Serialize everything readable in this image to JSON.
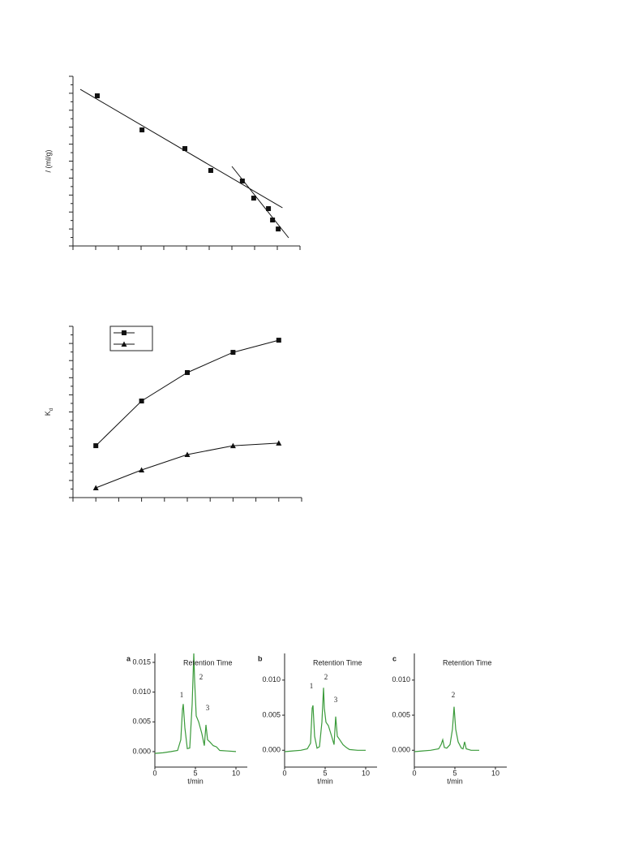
{
  "chart_data": [
    {
      "type": "scatter",
      "ylabel": "/   (ml/g)",
      "x": [
        1.07,
        3.04,
        4.93,
        6.07,
        7.46,
        7.96,
        8.61,
        8.79,
        9.04
      ],
      "values": [
        8.85,
        6.84,
        5.74,
        4.45,
        3.83,
        2.82,
        2.2,
        1.53,
        1.0
      ],
      "color": "#111",
      "fits": [
        {
          "x": [
            0.32,
            9.23
          ],
          "values": [
            9.23,
            2.25
          ]
        },
        {
          "x": [
            7.0,
            9.5
          ],
          "values": [
            4.69,
            0.48
          ]
        }
      ],
      "xlim": [
        0,
        10
      ],
      "ylim": [
        0,
        10
      ],
      "xticks": [
        0,
        1,
        2,
        3,
        4,
        5,
        6,
        7,
        8,
        9,
        10
      ],
      "yticks": [
        0,
        1,
        2,
        3,
        4,
        5,
        6,
        7,
        8,
        9,
        10
      ]
    },
    {
      "type": "line",
      "ylabel": "K",
      "ylabel_sub": "d",
      "x": [
        1,
        2,
        3,
        4,
        5
      ],
      "series": [
        {
          "marker": "square",
          "color": "#111",
          "values": [
            3.03,
            5.64,
            7.3,
            8.48,
            9.19
          ]
        },
        {
          "marker": "triangle",
          "color": "#111",
          "values": [
            0.57,
            1.61,
            2.51,
            3.03,
            3.18
          ]
        }
      ],
      "legend": "upper left",
      "xlim": [
        0.5,
        5.5
      ],
      "ylim": [
        0,
        10
      ],
      "xticks": [
        0.5,
        1,
        1.5,
        2,
        2.5,
        3,
        3.5,
        4,
        4.5,
        5,
        5.5
      ],
      "yticks": [
        0,
        1,
        2,
        3,
        4,
        5,
        6,
        7,
        8,
        9,
        10
      ]
    },
    {
      "type": "trace",
      "panel": "a",
      "title": "Retention Time",
      "xlabel": "t/min",
      "color": "#3a9a3a",
      "x": [
        0,
        1,
        2,
        2.8,
        3.2,
        3.4,
        3.5,
        3.7,
        4.0,
        4.3,
        4.6,
        4.8,
        4.9,
        5.1,
        5.4,
        5.8,
        6.1,
        6.3,
        6.5,
        6.8,
        7.2,
        7.6,
        8.0,
        9,
        10
      ],
      "values": [
        -0.0003,
        -0.0002,
        0,
        0.0002,
        0.002,
        0.007,
        0.008,
        0.004,
        0.0005,
        0.0006,
        0.008,
        0.0165,
        0.012,
        0.006,
        0.005,
        0.003,
        0.001,
        0.0045,
        0.002,
        0.0016,
        0.001,
        0.0008,
        0.0002,
        0.0001,
        0
      ],
      "peaks": [
        "1",
        "2",
        "3"
      ],
      "xlim": [
        0,
        11.4
      ],
      "ylim": [
        -0.0026,
        0.0165
      ],
      "xticks": [
        0,
        5,
        10
      ],
      "yticks": [
        {
          "value": 0,
          "label": "0.000"
        },
        {
          "value": 0.005,
          "label": "0.005"
        },
        {
          "value": 0.01,
          "label": "0.010"
        },
        {
          "value": 0.015,
          "label": "0.015"
        }
      ]
    },
    {
      "type": "trace",
      "panel": "b",
      "title": "Retention Time",
      "xlabel": "t/min",
      "color": "#3a9a3a",
      "x": [
        0,
        1,
        2,
        2.8,
        3.2,
        3.4,
        3.5,
        3.7,
        4.0,
        4.3,
        4.6,
        4.8,
        4.9,
        5.1,
        5.4,
        5.8,
        6.1,
        6.3,
        6.5,
        6.8,
        7.2,
        7.6,
        8.0,
        9,
        10
      ],
      "values": [
        -0.0002,
        -0.0001,
        0,
        0.0002,
        0.001,
        0.006,
        0.0064,
        0.002,
        0.0003,
        0.0005,
        0.004,
        0.0089,
        0.006,
        0.004,
        0.0035,
        0.002,
        0.0008,
        0.0048,
        0.002,
        0.0015,
        0.0008,
        0.0004,
        0.0001,
        0,
        0
      ],
      "peaks": [
        "1",
        "2",
        "3"
      ],
      "xlim": [
        0,
        11.4
      ],
      "ylim": [
        -0.0024,
        0.0138
      ],
      "xticks": [
        0,
        5,
        10
      ],
      "yticks": [
        {
          "value": 0,
          "label": "0.000"
        },
        {
          "value": 0.005,
          "label": "0.005"
        },
        {
          "value": 0.01,
          "label": "0.010"
        }
      ]
    },
    {
      "type": "trace",
      "panel": "c",
      "title": "Retention Time",
      "xlabel": "t/min",
      "color": "#3a9a3a",
      "x": [
        0,
        1,
        2,
        3,
        3.3,
        3.5,
        3.7,
        4.0,
        4.4,
        4.7,
        4.9,
        5.1,
        5.4,
        5.8,
        6.0,
        6.2,
        6.4,
        7,
        8
      ],
      "values": [
        -0.0002,
        -0.0001,
        0,
        0.0002,
        0.0008,
        0.0015,
        0.0004,
        0.0003,
        0.0008,
        0.003,
        0.0062,
        0.003,
        0.0012,
        0.0003,
        0.0002,
        0.0012,
        0.0002,
        0,
        0
      ],
      "peaks": [
        "2"
      ],
      "xlim": [
        0,
        11.4
      ],
      "ylim": [
        -0.0024,
        0.0138
      ],
      "xticks": [
        0,
        5,
        10
      ],
      "yticks": [
        {
          "value": 0,
          "label": "0.000"
        },
        {
          "value": 0.005,
          "label": "0.005"
        },
        {
          "value": 0.01,
          "label": "0.010"
        }
      ]
    }
  ]
}
